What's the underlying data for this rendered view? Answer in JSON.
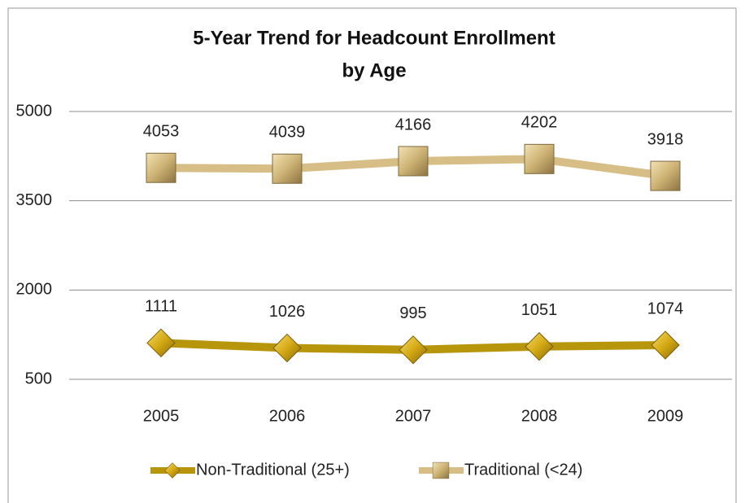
{
  "chart_data": {
    "type": "line",
    "title": [
      "5-Year Trend for Headcount Enrollment",
      "by Age"
    ],
    "categories": [
      "2005",
      "2006",
      "2007",
      "2008",
      "2009"
    ],
    "series": [
      {
        "name": "Non-Traditional (25+)",
        "color": "#b8960c",
        "marker": "diamond",
        "values": [
          1111,
          1026,
          995,
          1051,
          1074
        ]
      },
      {
        "name": "Traditional (<24)",
        "color": "#d6be86",
        "marker": "square",
        "values": [
          4053,
          4039,
          4166,
          4202,
          3918
        ]
      }
    ],
    "ylim": [
      500,
      5000
    ],
    "yticks": [
      500,
      2000,
      3500,
      5000
    ],
    "grid": true,
    "legend": "bottom"
  }
}
